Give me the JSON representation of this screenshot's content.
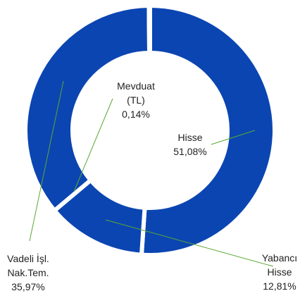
{
  "chart_data": {
    "type": "donut",
    "categories": [
      "Hisse",
      "Yabancı Hisse",
      "Vadeli İşl. Nak.Tem.",
      "Mevduat (TL)"
    ],
    "values": [
      51.08,
      12.81,
      35.97,
      0.14
    ],
    "value_labels": [
      "51,08%",
      "12,81%",
      "35,97%",
      "0,14%"
    ],
    "color": "#0b45b2"
  }
}
